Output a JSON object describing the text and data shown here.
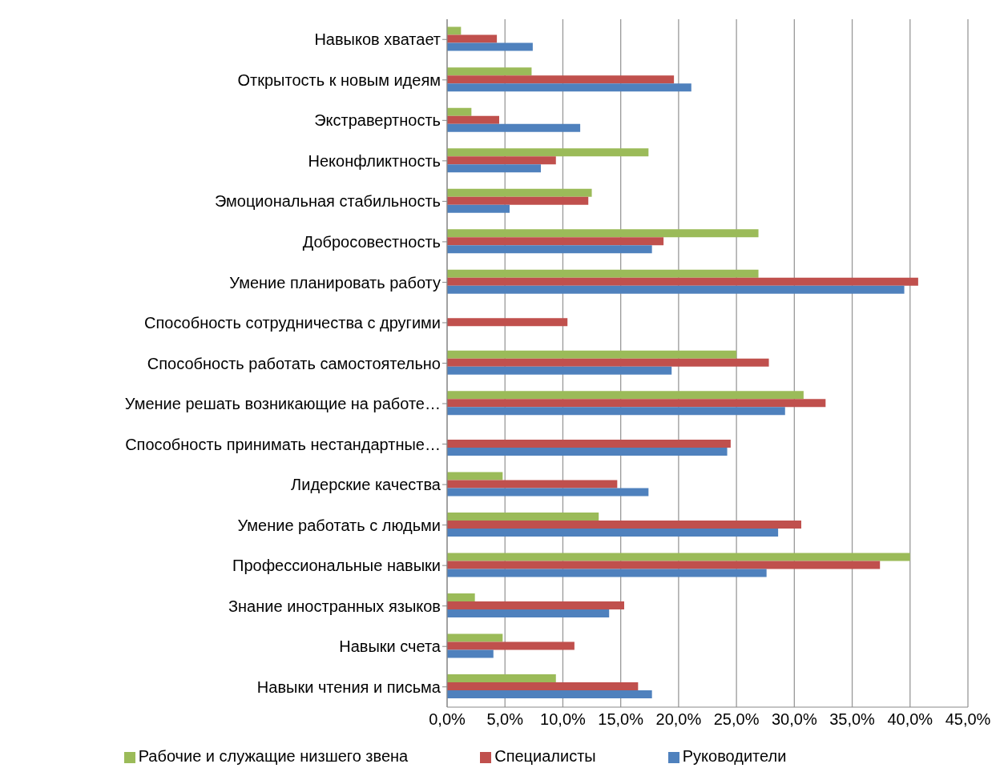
{
  "chart_data": {
    "type": "bar",
    "orientation": "horizontal",
    "categories": [
      "Навыков хватает",
      "Открытость к новым идеям",
      "Экстравертность",
      "Неконфликтность",
      "Эмоциональная стабильность",
      "Добросовестность",
      "Умение планировать работу",
      "Способность сотрудничества с другими",
      "Способность работать самостоятельно",
      "Умение решать возникающие на работе…",
      "Способность принимать нестандартные…",
      "Лидерские качества",
      "Умение работать с людьми",
      "Профессиональные навыки",
      "Знание иностранных языков",
      "Навыки счета",
      "Навыки чтения и письма"
    ],
    "series": [
      {
        "name": "Рабочие и служащие низшего звена",
        "color": "#9bbb59",
        "values": [
          1.2,
          7.3,
          2.1,
          17.4,
          12.5,
          26.9,
          26.9,
          0,
          25.0,
          30.8,
          0,
          4.8,
          13.1,
          40.0,
          2.4,
          4.8,
          9.4
        ]
      },
      {
        "name": "Специалисты",
        "color": "#c0504d",
        "values": [
          4.3,
          19.6,
          4.5,
          9.4,
          12.2,
          18.7,
          40.7,
          10.4,
          27.8,
          32.7,
          24.5,
          14.7,
          30.6,
          37.4,
          15.3,
          11.0,
          16.5
        ]
      },
      {
        "name": "Руководители",
        "color": "#4f81bd",
        "values": [
          7.4,
          21.1,
          11.5,
          8.1,
          5.4,
          17.7,
          39.5,
          0,
          19.4,
          29.2,
          24.2,
          17.4,
          28.6,
          27.6,
          14.0,
          4.0,
          17.7
        ]
      }
    ],
    "xlim": [
      0,
      45
    ],
    "xticks": [
      {
        "value": 0,
        "label": "0,0%"
      },
      {
        "value": 5,
        "label": "5,0%"
      },
      {
        "value": 10,
        "label": "10,0%"
      },
      {
        "value": 15,
        "label": "15,0%"
      },
      {
        "value": 20,
        "label": "20,0%"
      },
      {
        "value": 25,
        "label": "25,0%"
      },
      {
        "value": 30,
        "label": "30,0%"
      },
      {
        "value": 35,
        "label": "35,0%"
      },
      {
        "value": 40,
        "label": "40,0%"
      },
      {
        "value": 45,
        "label": "45,0%"
      }
    ],
    "grid": "x",
    "legend": "bottom"
  }
}
